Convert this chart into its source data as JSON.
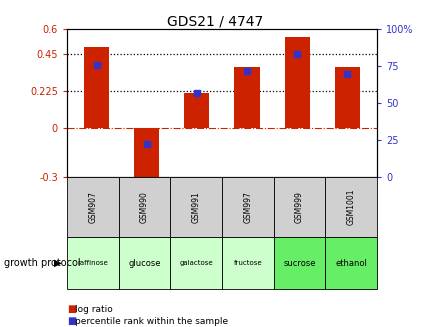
{
  "title": "GDS21 / 4747",
  "categories": [
    "GSM907",
    "GSM990",
    "GSM991",
    "GSM997",
    "GSM999",
    "GSM1001"
  ],
  "growth_labels": [
    "raffinose",
    "glucose",
    "galactose",
    "fructose",
    "sucrose",
    "ethanol"
  ],
  "log_ratios": [
    0.49,
    -0.38,
    0.21,
    0.37,
    0.555,
    0.37
  ],
  "percentile_ranks": [
    76,
    22,
    57,
    72,
    83,
    70
  ],
  "bar_color": "#cc2200",
  "dot_color": "#3333cc",
  "ylim_left": [
    -0.3,
    0.6
  ],
  "ylim_right": [
    0,
    100
  ],
  "yticks_left": [
    -0.3,
    0,
    0.225,
    0.45,
    0.6
  ],
  "ytick_labels_left": [
    "-0.3",
    "0",
    "0.225",
    "0.45",
    "0.6"
  ],
  "yticks_right": [
    0,
    25,
    50,
    75,
    100
  ],
  "ytick_labels_right": [
    "0",
    "25",
    "50",
    "75",
    "100%"
  ],
  "hlines": [
    0.225,
    0.45
  ],
  "zero_line_color": "#cc2200",
  "bg_color": "#ffffff",
  "cell_color_gsm": "#d0d0d0",
  "cell_colors_growth": [
    "#ccffcc",
    "#ccffcc",
    "#ccffcc",
    "#ccffcc",
    "#66ee66",
    "#66ee66"
  ],
  "bar_width": 0.5
}
